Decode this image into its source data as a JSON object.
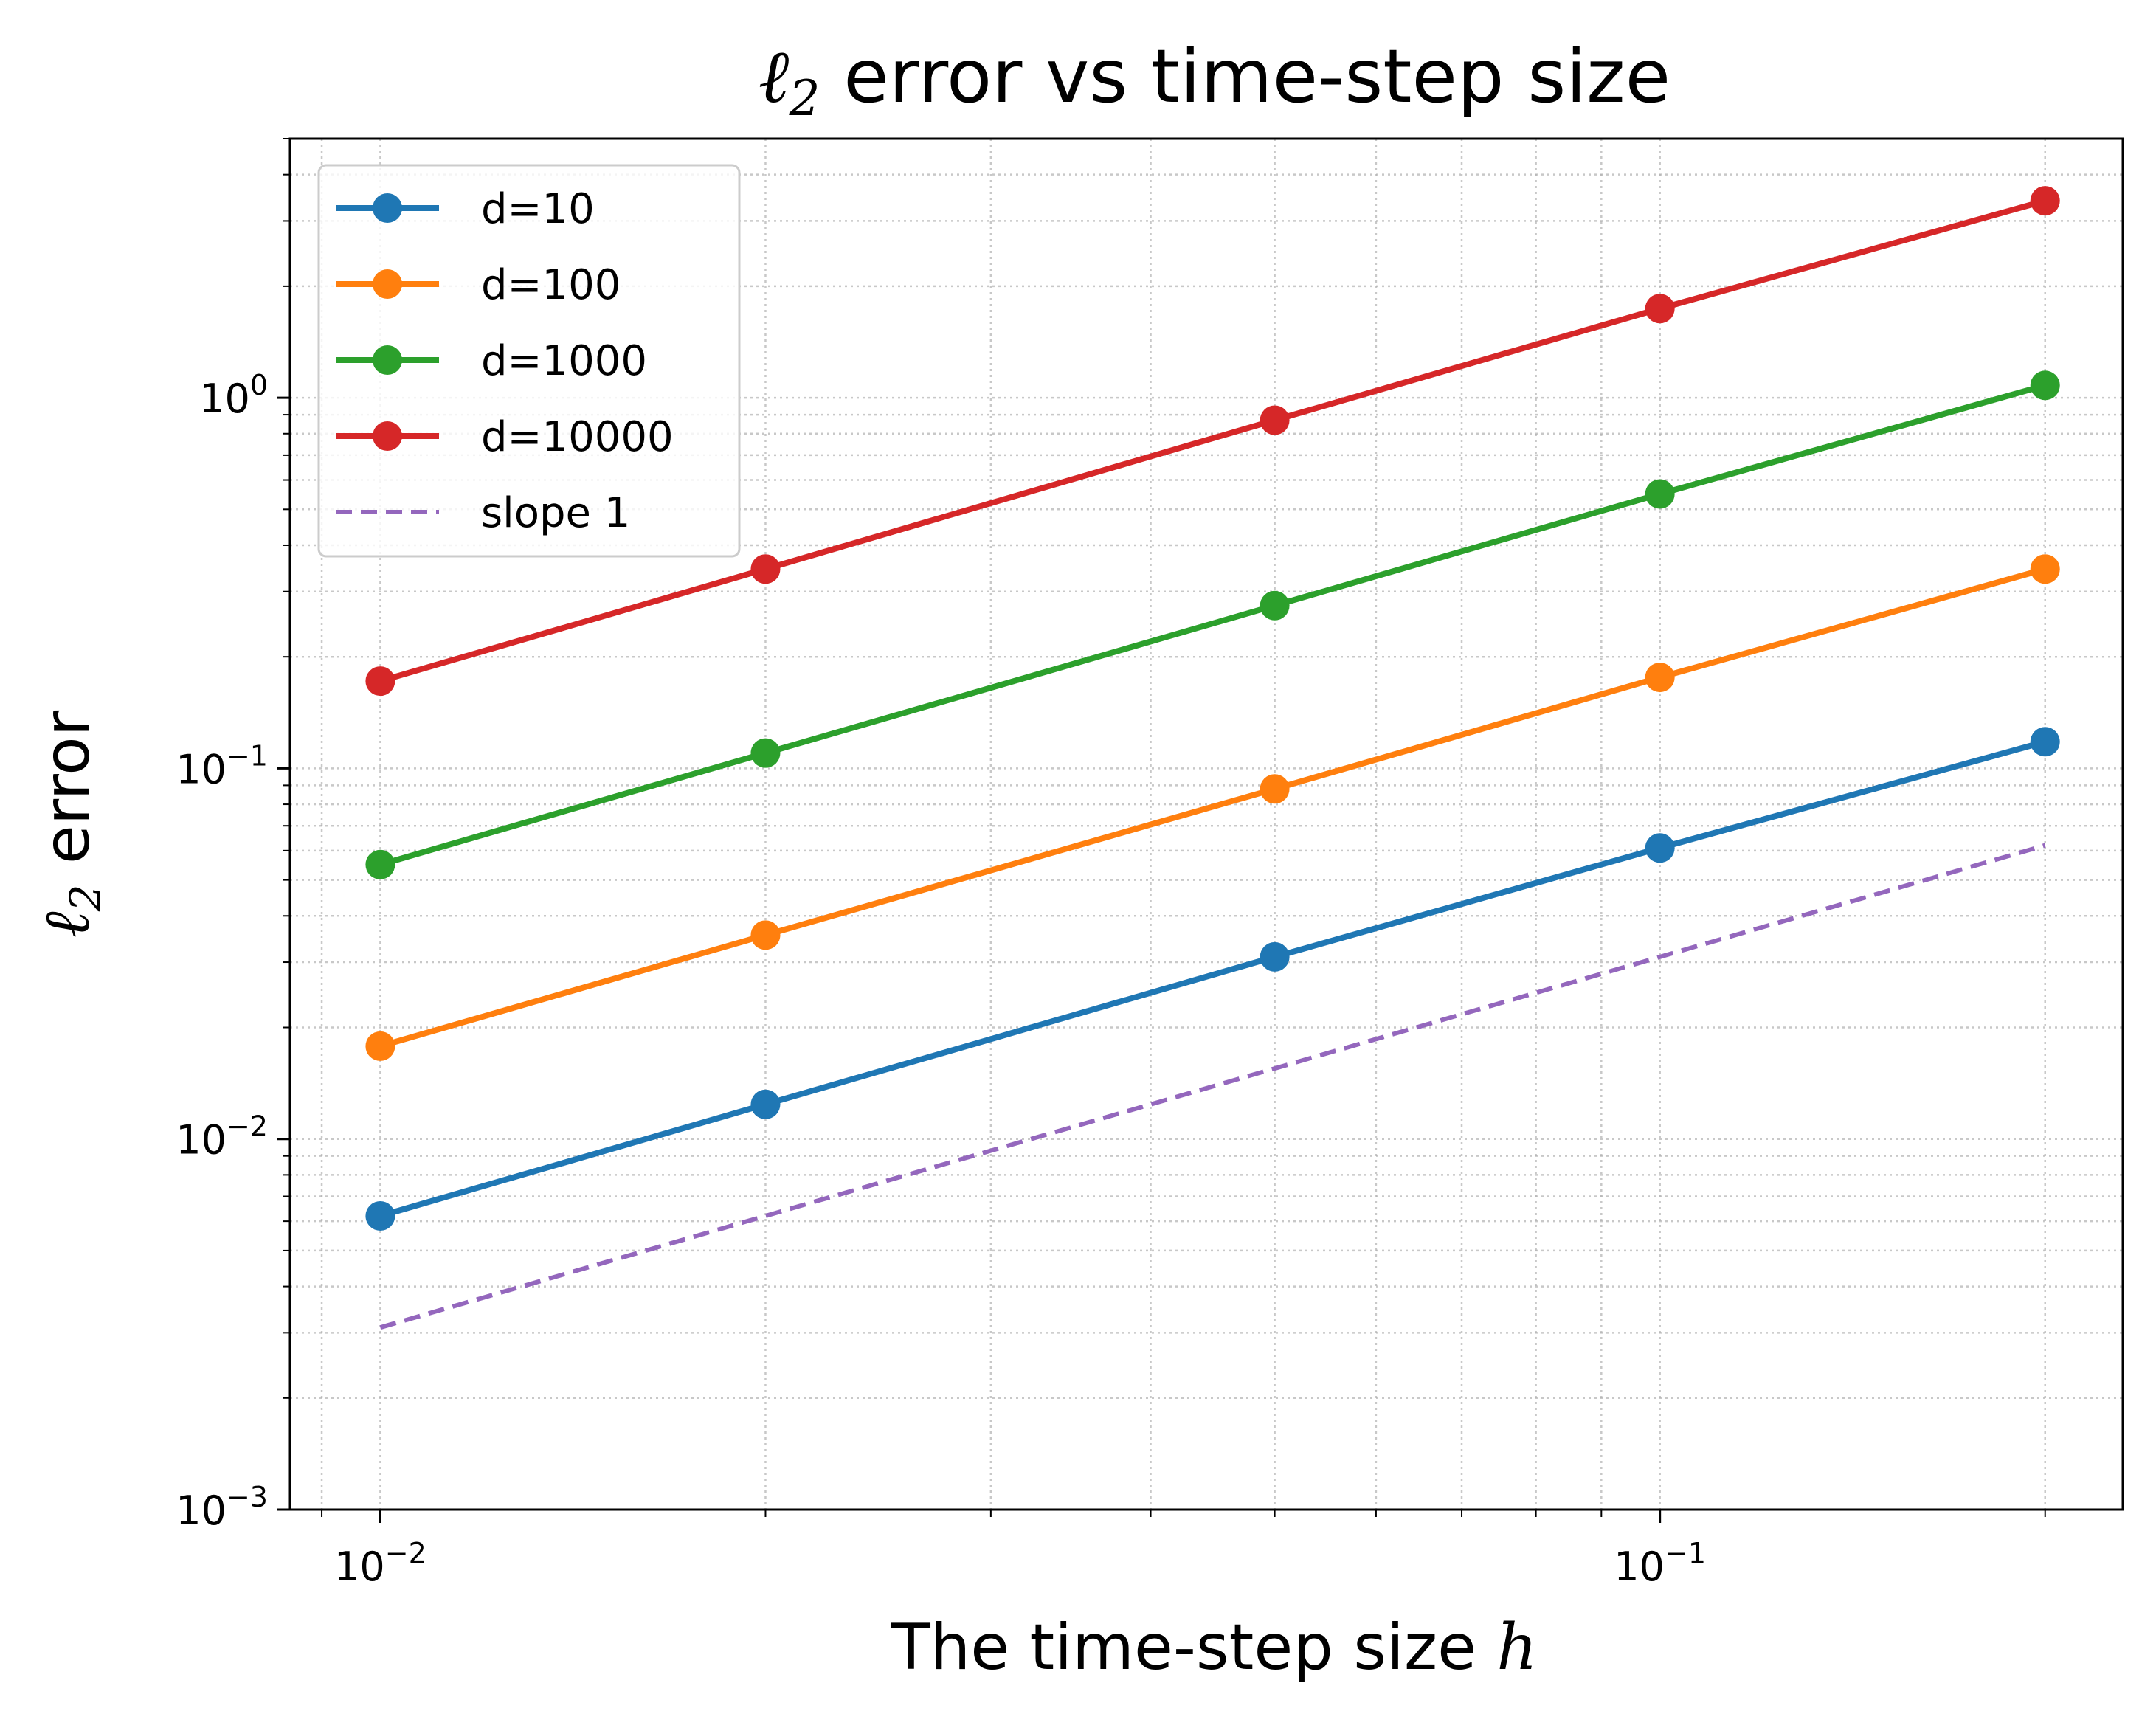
{
  "chart_data": {
    "type": "line",
    "title_prefix": "ℓ",
    "title_sub": "2",
    "title_rest": " error vs time-step size",
    "xlabel_text": "The time-step size ",
    "xlabel_var": "h",
    "ylabel_prefix": "ℓ",
    "ylabel_sub": "2",
    "ylabel_rest": " error",
    "x_scale": "log",
    "y_scale": "log",
    "xlim": [
      0.0085,
      0.23
    ],
    "ylim": [
      0.001,
      5.0
    ],
    "x_ticks": [
      {
        "value": 0.01,
        "base": "10",
        "exp": "−2"
      },
      {
        "value": 0.1,
        "base": "10",
        "exp": "−1"
      }
    ],
    "y_ticks": [
      {
        "value": 0.001,
        "base": "10",
        "exp": "−3"
      },
      {
        "value": 0.01,
        "base": "10",
        "exp": "−2"
      },
      {
        "value": 0.1,
        "base": "10",
        "exp": "−1"
      },
      {
        "value": 1,
        "base": "10",
        "exp": "0"
      }
    ],
    "grid": true,
    "grid_style": "dotted",
    "legend_position": "top-left",
    "x": [
      0.01,
      0.02,
      0.05,
      0.1,
      0.2
    ],
    "series": [
      {
        "name": "d=10",
        "color": "#1f77b4",
        "style": "solid-marker",
        "values": [
          0.0062,
          0.0124,
          0.031,
          0.061,
          0.118
        ]
      },
      {
        "name": "d=100",
        "color": "#ff7f0e",
        "style": "solid-marker",
        "values": [
          0.0178,
          0.0355,
          0.088,
          0.176,
          0.345
        ]
      },
      {
        "name": "d=1000",
        "color": "#2ca02c",
        "style": "solid-marker",
        "values": [
          0.055,
          0.11,
          0.275,
          0.55,
          1.08
        ]
      },
      {
        "name": "d=10000",
        "color": "#d62728",
        "style": "solid-marker",
        "values": [
          0.172,
          0.345,
          0.87,
          1.74,
          3.4
        ]
      },
      {
        "name": "slope 1",
        "color": "#9467bd",
        "style": "dashed",
        "values": [
          0.0031,
          0.0062,
          0.0155,
          0.031,
          0.062
        ]
      }
    ]
  }
}
